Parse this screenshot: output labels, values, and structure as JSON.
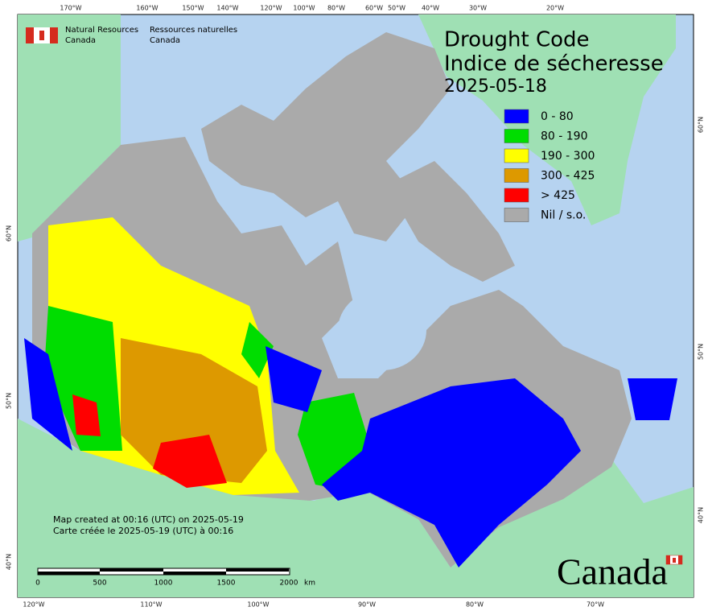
{
  "header": {
    "agency_en": [
      "Natural Resources",
      "Canada"
    ],
    "agency_fr": [
      "Ressources naturelles",
      "Canada"
    ]
  },
  "title": "Drought Code",
  "title_fr": "Indice de sécheresse",
  "date": "2025-05-18",
  "legend": [
    {
      "label": "0 - 80",
      "color": "#0000ff"
    },
    {
      "label": "80 - 190",
      "color": "#00dd00"
    },
    {
      "label": "190 - 300",
      "color": "#ffff00"
    },
    {
      "label": "300 - 425",
      "color": "#dd9900"
    },
    {
      "label": "> 425",
      "color": "#ff0000"
    },
    {
      "label": "Nil / s.o.",
      "color": "#aaaaaa"
    }
  ],
  "credits": [
    "Map created at 00:16 (UTC) on 2025-05-19",
    "Carte créée le 2025-05-19 (UTC) à 00:16"
  ],
  "scale_bar": {
    "labels": [
      0,
      500,
      1000,
      1500,
      2000
    ],
    "unit": "km"
  },
  "graticule": {
    "top": [
      "170°W",
      "160°W",
      "150°W",
      "140°W",
      "120°W",
      "100°W",
      "80°W",
      "60°W",
      "50°W",
      "40°W",
      "30°W",
      "20°W"
    ],
    "bottom": [
      "120°W",
      "110°W",
      "100°W",
      "90°W",
      "80°W",
      "70°W"
    ],
    "left": [
      "60°N",
      "50°N",
      "40°N"
    ],
    "right": [
      "60°N",
      "50°N",
      "40°N"
    ]
  },
  "wordmark": "Canada"
}
